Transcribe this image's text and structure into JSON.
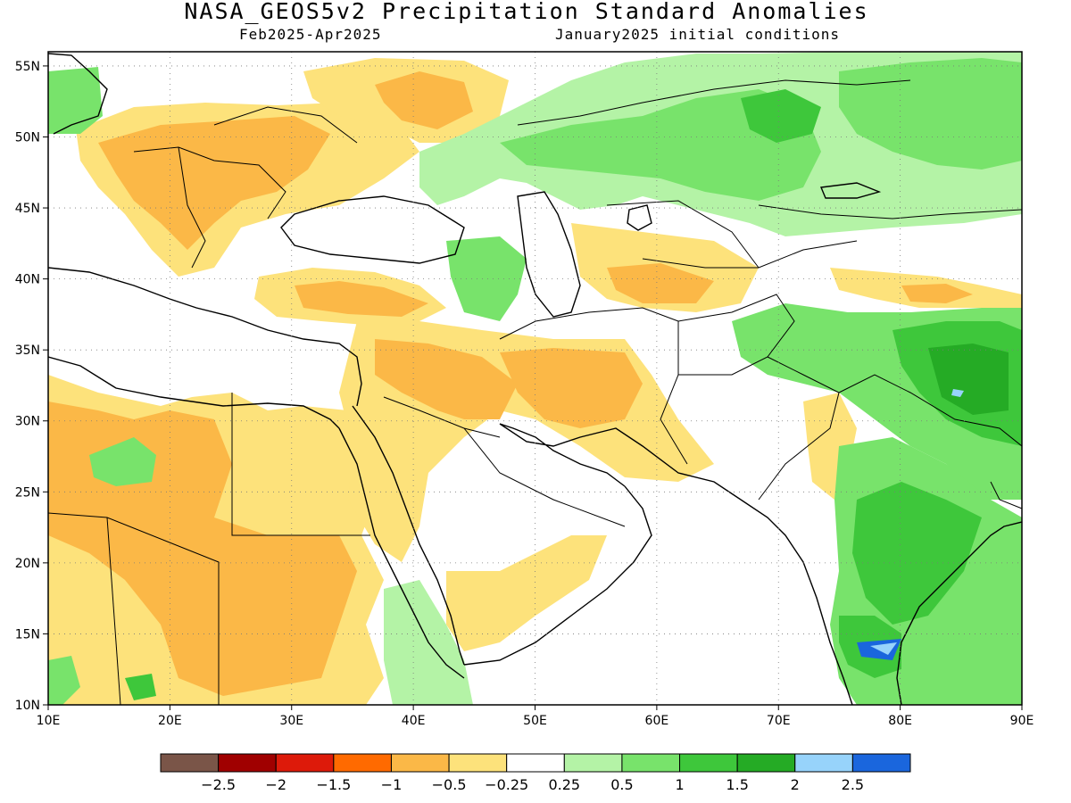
{
  "header": {
    "title": "NASA_GEOS5v2 Precipitation Standard Anomalies",
    "period": "Feb2025-Apr2025",
    "init": "January2025 initial conditions"
  },
  "map": {
    "lon_range": [
      10,
      90
    ],
    "lat_range": [
      10,
      56
    ],
    "lon_ticks": [
      {
        "value": 10,
        "label": "10E"
      },
      {
        "value": 20,
        "label": "20E"
      },
      {
        "value": 30,
        "label": "30E"
      },
      {
        "value": 40,
        "label": "40E"
      },
      {
        "value": 50,
        "label": "50E"
      },
      {
        "value": 60,
        "label": "60E"
      },
      {
        "value": 70,
        "label": "70E"
      },
      {
        "value": 80,
        "label": "80E"
      },
      {
        "value": 90,
        "label": "90E"
      }
    ],
    "lat_ticks": [
      {
        "value": 10,
        "label": "10N"
      },
      {
        "value": 15,
        "label": "15N"
      },
      {
        "value": 20,
        "label": "20N"
      },
      {
        "value": 25,
        "label": "25N"
      },
      {
        "value": 30,
        "label": "30N"
      },
      {
        "value": 35,
        "label": "35N"
      },
      {
        "value": 40,
        "label": "40N"
      },
      {
        "value": 45,
        "label": "45N"
      },
      {
        "value": 50,
        "label": "50N"
      },
      {
        "value": 55,
        "label": "55N"
      }
    ]
  },
  "colorbar": {
    "colors": [
      "#7a5548",
      "#a00000",
      "#dd1a0a",
      "#ff6a00",
      "#fbb847",
      "#fde27b",
      "#ffffff",
      "#b4f3a6",
      "#78e36b",
      "#3ec73b",
      "#25ab25",
      "#97d3fb",
      "#1a66dd"
    ],
    "labels": [
      "−2.5",
      "−2",
      "−1.5",
      "−1",
      "−0.5",
      "−0.25",
      "0.25",
      "0.5",
      "1",
      "1.5",
      "2",
      "2.5"
    ]
  }
}
